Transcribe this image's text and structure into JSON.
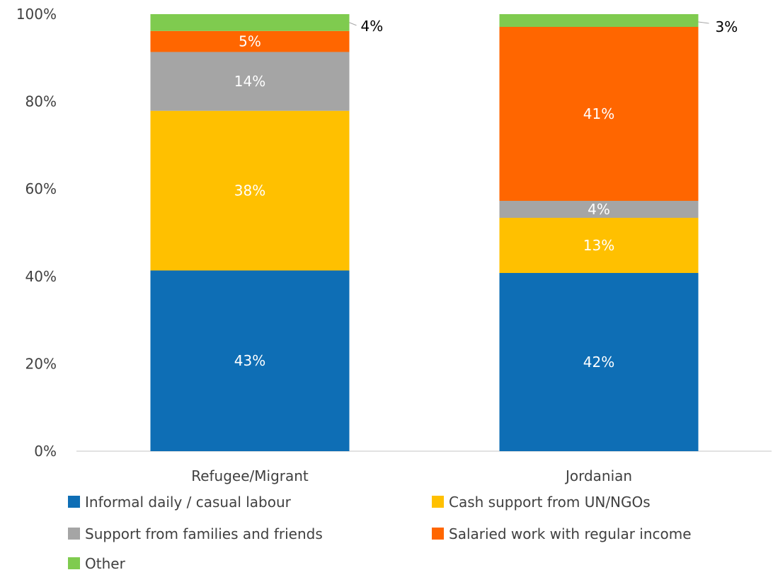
{
  "chart_data": {
    "type": "bar",
    "stacked": true,
    "categories": [
      "Refugee/Migrant",
      "Jordanian"
    ],
    "ylim": [
      0,
      100
    ],
    "yticks": [
      "0%",
      "20%",
      "40%",
      "60%",
      "80%",
      "100%"
    ],
    "grid": false,
    "legend_position": "bottom",
    "series": [
      {
        "name": "Informal daily / casual labour",
        "color": "#0E6EB5",
        "values": [
          43,
          42
        ],
        "labels": [
          "43%",
          "42%"
        ]
      },
      {
        "name": "Cash support from UN/NGOs",
        "color": "#FFC000",
        "values": [
          38,
          13
        ],
        "labels": [
          "38%",
          "13%"
        ]
      },
      {
        "name": "Support from families and friends",
        "color": "#A5A5A5",
        "values": [
          14,
          4
        ],
        "labels": [
          "14%",
          "4%"
        ]
      },
      {
        "name": "Salaried work with regular income",
        "color": "#FF6600",
        "values": [
          5,
          41
        ],
        "labels": [
          "5%",
          "41%"
        ]
      },
      {
        "name": "Other",
        "color": "#7FCB4F",
        "values": [
          4,
          3
        ],
        "labels": [
          "4%",
          "3%"
        ]
      }
    ]
  }
}
